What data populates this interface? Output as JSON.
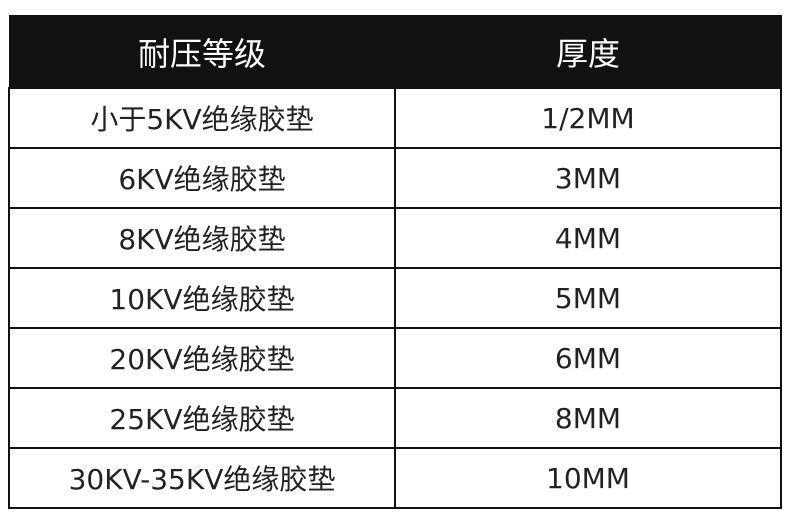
{
  "table": {
    "headers": [
      "耐压等级",
      "厚度"
    ],
    "rows": [
      [
        "小于5KV绝缘胶垫",
        "1/2MM"
      ],
      [
        "6KV绝缘胶垫",
        "3MM"
      ],
      [
        "8KV绝缘胶垫",
        "4MM"
      ],
      [
        "10KV绝缘胶垫",
        "5MM"
      ],
      [
        "20KV绝缘胶垫",
        "6MM"
      ],
      [
        "25KV绝缘胶垫",
        "8MM"
      ],
      [
        "30KV-35KV绝缘胶垫",
        "10MM"
      ]
    ]
  }
}
